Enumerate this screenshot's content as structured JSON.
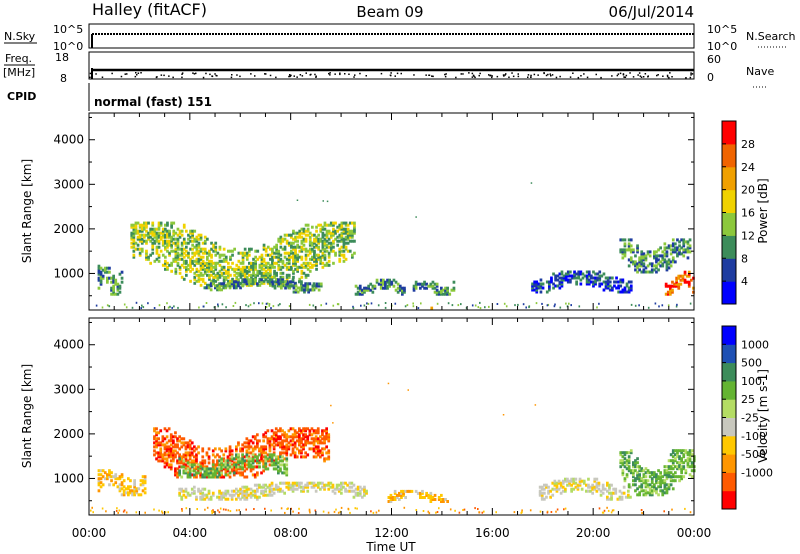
{
  "header": {
    "station": "Halley (fitACF)",
    "beam": "Beam 09",
    "date": "06/Jul/2014"
  },
  "param_panels": {
    "nsky": {
      "left_label": "N.Sky",
      "top_tick": "10^5",
      "bottom_tick": "10^0",
      "right_label": "N.Search",
      "right_top_tick": "10^5",
      "right_bottom_tick": "10^0"
    },
    "freq": {
      "left_label_1": "Freq.",
      "left_label_2": "[MHz]",
      "top_tick": "18",
      "bottom_tick": "8",
      "right_label": "Nave",
      "right_top_tick": "60",
      "right_bottom_tick": "0"
    },
    "cpid": {
      "label": "CPID",
      "value": "normal (fast) 151"
    }
  },
  "time_axis": {
    "label": "Time UT",
    "ticks": [
      "00:00",
      "04:00",
      "08:00",
      "12:00",
      "16:00",
      "20:00",
      "00:00"
    ]
  },
  "colors": {
    "power_scale": [
      "#0000ff",
      "#1e3ca0",
      "#3c8c5a",
      "#8cc83c",
      "#f0d200",
      "#f0a000",
      "#f06400",
      "#ff0000"
    ],
    "velocity_scale": [
      "#ff0000",
      "#ff5a00",
      "#ff9600",
      "#ffc800",
      "#c8c8be",
      "#b4dc64",
      "#64b432",
      "#3c8c5a",
      "#1e50b4",
      "#0000ff"
    ]
  },
  "chart_data": [
    {
      "type": "heatmap",
      "title": "Power",
      "xlabel": "Time UT",
      "ylabel": "Slant Range [km]",
      "ylim": [
        180,
        4600
      ],
      "yticks": [
        1000,
        2000,
        3000,
        4000
      ],
      "colorbar": {
        "label": "Power [dB]",
        "ticks": [
          "4",
          "8",
          "12",
          "16",
          "20",
          "24",
          "28"
        ],
        "range": [
          0,
          32
        ]
      },
      "patches": [
        {
          "t0": 0.3,
          "t1": 1.3,
          "r0": 500,
          "r1": 1150,
          "v": 11
        },
        {
          "t0": 1.6,
          "t1": 10.5,
          "r0": 700,
          "r1": 2100,
          "v": 15
        },
        {
          "t0": 4.5,
          "t1": 9.0,
          "r0": 600,
          "r1": 850,
          "v": 10
        },
        {
          "t0": 7.2,
          "t1": 9.2,
          "r0": 550,
          "r1": 780,
          "v": 13
        },
        {
          "t0": 10.5,
          "t1": 12.5,
          "r0": 500,
          "r1": 820,
          "v": 10
        },
        {
          "t0": 12.8,
          "t1": 14.5,
          "r0": 500,
          "r1": 800,
          "v": 12
        },
        {
          "t0": 13.0,
          "t1": 13.8,
          "r0": 190,
          "r1": 260,
          "v": 22
        },
        {
          "t0": 17.5,
          "t1": 21.5,
          "r0": 550,
          "r1": 1000,
          "v": 9
        },
        {
          "t0": 21.0,
          "t1": 23.8,
          "r0": 1000,
          "r1": 1750,
          "v": 10
        },
        {
          "t0": 22.8,
          "t1": 24.0,
          "r0": 500,
          "r1": 1000,
          "v": 26
        }
      ]
    },
    {
      "type": "heatmap",
      "title": "Velocity",
      "xlabel": "Time UT",
      "ylabel": "Slant Range [km]",
      "ylim": [
        180,
        4600
      ],
      "yticks": [
        1000,
        2000,
        3000,
        4000
      ],
      "colorbar": {
        "label": "Velocity [m s-1]",
        "ticks": [
          "1000",
          "500",
          "100",
          "25",
          "-25",
          "-100",
          "-500",
          "-1000"
        ]
      },
      "patches": [
        {
          "t0": 0.3,
          "t1": 2.2,
          "r0": 600,
          "r1": 1150,
          "v": 3
        },
        {
          "t0": 2.5,
          "t1": 9.5,
          "r0": 1000,
          "r1": 2100,
          "v": 1
        },
        {
          "t0": 3.5,
          "t1": 11.0,
          "r0": 500,
          "r1": 900,
          "v": 4
        },
        {
          "t0": 3.5,
          "t1": 7.8,
          "r0": 1000,
          "r1": 1500,
          "v": 6
        },
        {
          "t0": 11.8,
          "t1": 14.2,
          "r0": 450,
          "r1": 700,
          "v": 3
        },
        {
          "t0": 17.8,
          "t1": 21.5,
          "r0": 500,
          "r1": 950,
          "v": 4
        },
        {
          "t0": 21.0,
          "t1": 24.0,
          "r0": 600,
          "r1": 1600,
          "v": 6
        }
      ]
    }
  ]
}
